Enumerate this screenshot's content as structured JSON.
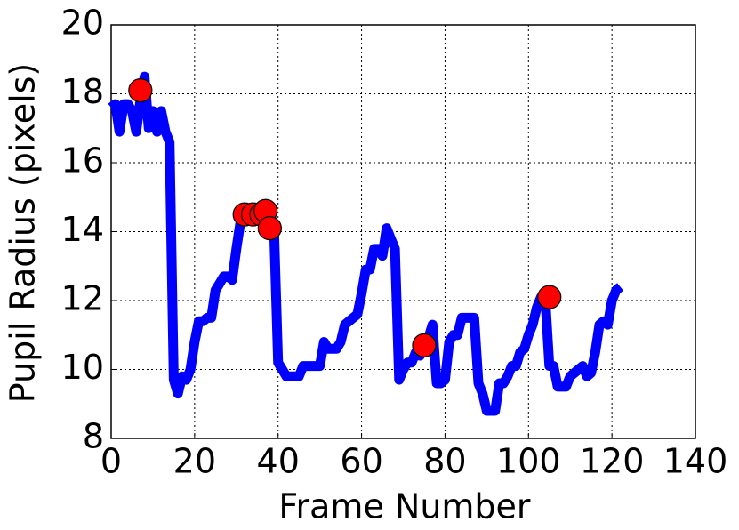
{
  "chart_data": {
    "type": "line",
    "xlabel": "Frame Number",
    "ylabel": "Pupil Radius (pixels)",
    "xlim": [
      0,
      140
    ],
    "ylim": [
      8,
      20
    ],
    "xticks": [
      0,
      20,
      40,
      60,
      80,
      100,
      120,
      140
    ],
    "yticks": [
      8,
      10,
      12,
      14,
      16,
      18,
      20
    ],
    "grid": true,
    "series": [
      {
        "type": "line",
        "color": "#0000ff",
        "x": [
          0,
          1,
          2,
          3,
          4,
          5,
          6,
          7,
          8,
          9,
          10,
          11,
          12,
          13,
          14,
          15,
          16,
          17,
          18,
          19,
          20,
          21,
          22,
          23,
          24,
          25,
          26,
          27,
          28,
          29,
          30,
          31,
          32,
          33,
          34,
          35,
          36,
          37,
          38,
          39,
          40,
          41,
          42,
          43,
          44,
          45,
          46,
          47,
          48,
          49,
          50,
          51,
          52,
          53,
          54,
          55,
          56,
          57,
          58,
          59,
          60,
          61,
          62,
          63,
          64,
          65,
          66,
          67,
          68,
          69,
          70,
          71,
          72,
          73,
          74,
          75,
          76,
          77,
          78,
          79,
          80,
          81,
          82,
          83,
          84,
          85,
          86,
          87,
          88,
          89,
          90,
          91,
          92,
          93,
          94,
          95,
          96,
          97,
          98,
          99,
          100,
          101,
          102,
          103,
          104,
          105,
          106,
          107,
          108,
          109,
          110,
          111,
          112,
          113,
          114,
          115,
          116,
          117,
          118,
          119,
          120,
          121,
          122
        ],
        "values": [
          17.6,
          17.7,
          16.9,
          17.7,
          17.7,
          17.5,
          16.9,
          17.8,
          18.5,
          17.0,
          17.5,
          16.9,
          17.5,
          16.9,
          16.6,
          9.7,
          9.3,
          9.8,
          9.7,
          10.0,
          10.8,
          11.4,
          11.4,
          11.5,
          11.5,
          12.3,
          12.5,
          12.7,
          12.7,
          12.6,
          13.5,
          14.3,
          14.5,
          14.5,
          14.5,
          14.5,
          14.5,
          14.6,
          14.5,
          14.2,
          10.2,
          10.0,
          9.8,
          9.8,
          9.8,
          9.8,
          10.1,
          10.1,
          10.1,
          10.1,
          10.1,
          10.8,
          10.6,
          10.6,
          10.6,
          10.8,
          11.3,
          11.4,
          11.5,
          11.6,
          12.2,
          12.9,
          12.9,
          13.5,
          13.5,
          13.3,
          14.1,
          13.8,
          13.5,
          9.7,
          10.0,
          10.2,
          10.2,
          10.5,
          10.4,
          10.7,
          10.9,
          11.3,
          9.6,
          9.6,
          9.7,
          10.8,
          11.0,
          11.0,
          11.5,
          11.5,
          11.5,
          11.5,
          9.6,
          9.3,
          8.8,
          8.8,
          8.8,
          9.6,
          9.6,
          9.8,
          10.1,
          10.1,
          10.5,
          10.6,
          11.0,
          11.3,
          11.8,
          12.1,
          12.1,
          10.1,
          10.1,
          9.5,
          9.5,
          9.5,
          9.8,
          9.9,
          10.0,
          10.1,
          9.8,
          9.9,
          10.5,
          11.3,
          11.4,
          11.3,
          12.0,
          12.3,
          12.4
        ]
      },
      {
        "type": "scatter",
        "color": "#ff0000",
        "x": [
          7,
          32,
          34,
          36,
          37,
          38,
          75,
          105
        ],
        "values": [
          18.1,
          14.5,
          14.5,
          14.5,
          14.6,
          14.1,
          10.7,
          12.1
        ]
      }
    ]
  }
}
